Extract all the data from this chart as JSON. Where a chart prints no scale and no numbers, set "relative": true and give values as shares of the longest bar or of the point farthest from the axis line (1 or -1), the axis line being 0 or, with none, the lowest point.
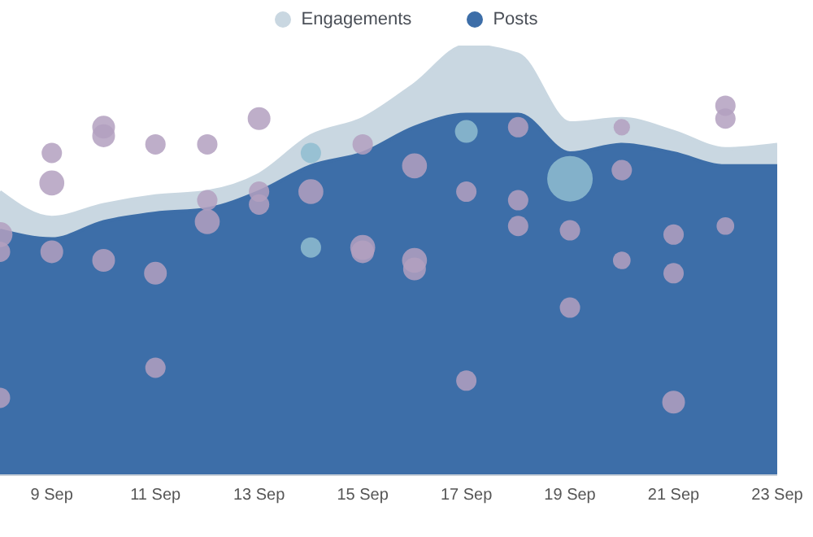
{
  "chart_data": {
    "type": "area",
    "relative": true,
    "legend": "top",
    "x": [
      "--09-08",
      "--09-09",
      "--09-10",
      "--09-11",
      "--09-12",
      "--09-13",
      "--09-14",
      "--09-15",
      "--09-16",
      "--09-17",
      "--09-18",
      "--09-19",
      "--09-20",
      "--09-21",
      "--09-22",
      "--09-23"
    ],
    "xlim": [
      "--09-08",
      "--09-23"
    ],
    "xticks": [
      {
        "value": "--09-09",
        "label": "9 Sep"
      },
      {
        "value": "--09-11",
        "label": "11 Sep"
      },
      {
        "value": "--09-13",
        "label": "13 Sep"
      },
      {
        "value": "--09-15",
        "label": "15 Sep"
      },
      {
        "value": "--09-17",
        "label": "17 Sep"
      },
      {
        "value": "--09-19",
        "label": "19 Sep"
      },
      {
        "value": "--09-21",
        "label": "21 Sep"
      },
      {
        "value": "--09-23",
        "label": "23 Sep"
      }
    ],
    "series": [
      {
        "name": "Engagements",
        "color": "#c9d7e1",
        "values": [
          0.66,
          0.6,
          0.63,
          0.65,
          0.66,
          0.7,
          0.79,
          0.83,
          0.91,
          1.0,
          0.98,
          0.82,
          0.83,
          0.8,
          0.76,
          0.77
        ]
      },
      {
        "name": "Posts",
        "color": "#3d6ea8",
        "values": [
          0.57,
          0.55,
          0.59,
          0.61,
          0.62,
          0.66,
          0.72,
          0.75,
          0.81,
          0.84,
          0.84,
          0.75,
          0.77,
          0.75,
          0.72,
          0.72
        ]
      },
      {
        "type": "bubble",
        "color": "#b3a0bf",
        "x": [
          "--09-08",
          "--09-08",
          "--09-08",
          "--09-09",
          "--09-09",
          "--09-09",
          "--09-10",
          "--09-10",
          "--09-10",
          "--09-11",
          "--09-11",
          "--09-11",
          "--09-12",
          "--09-12",
          "--09-12",
          "--09-13",
          "--09-13",
          "--09-13",
          "--09-14",
          "--09-15",
          "--09-15",
          "--09-15",
          "--09-16",
          "--09-16",
          "--09-16",
          "--09-17",
          "--09-17",
          "--09-18",
          "--09-18",
          "--09-18",
          "--09-19",
          "--09-19",
          "--09-20",
          "--09-20",
          "--09-20",
          "--09-21",
          "--09-21",
          "--09-21",
          "--09-22",
          "--09-22",
          "--09-22"
        ],
        "values": [
          0.56,
          0.52,
          0.18,
          0.75,
          0.68,
          0.52,
          0.81,
          0.79,
          0.5,
          0.77,
          0.47,
          0.25,
          0.77,
          0.64,
          0.59,
          0.83,
          0.66,
          0.63,
          0.66,
          0.77,
          0.53,
          0.52,
          0.72,
          0.5,
          0.48,
          0.66,
          0.22,
          0.81,
          0.64,
          0.58,
          0.57,
          0.39,
          0.81,
          0.71,
          0.5,
          0.56,
          0.47,
          0.17,
          0.86,
          0.83,
          0.58
        ],
        "sizes": [
          0.3,
          0.2,
          0.2,
          0.2,
          0.3,
          0.25,
          0.25,
          0.25,
          0.25,
          0.2,
          0.25,
          0.2,
          0.2,
          0.2,
          0.3,
          0.25,
          0.2,
          0.2,
          0.3,
          0.2,
          0.3,
          0.25,
          0.3,
          0.3,
          0.25,
          0.2,
          0.2,
          0.2,
          0.2,
          0.2,
          0.2,
          0.2,
          0.13,
          0.2,
          0.15,
          0.2,
          0.2,
          0.25,
          0.2,
          0.2,
          0.15
        ]
      },
      {
        "type": "bubble",
        "color": "#8fbdd0",
        "x": [
          "--09-14",
          "--09-14",
          "--09-17",
          "--09-19"
        ],
        "values": [
          0.75,
          0.53,
          0.8,
          0.69
        ],
        "sizes": [
          0.2,
          0.2,
          0.25,
          1.0
        ]
      }
    ]
  }
}
